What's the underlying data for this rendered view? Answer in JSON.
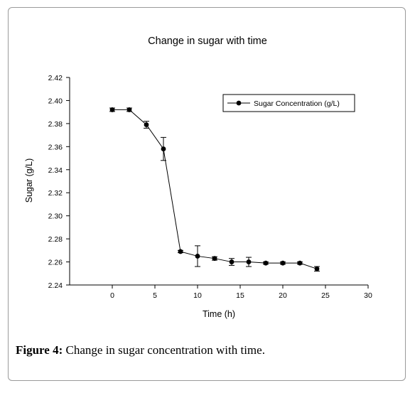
{
  "figure": {
    "caption_label": "Figure 4:",
    "caption_text": " Change in sugar concentration with time."
  },
  "chart_data": {
    "type": "line",
    "title": "Change in sugar with time",
    "xlabel": "Time (h)",
    "ylabel": "Sugar (g/L)",
    "xlim": [
      -5,
      30
    ],
    "ylim": [
      2.24,
      2.42
    ],
    "xticks": [
      0,
      5,
      10,
      15,
      20,
      25,
      30
    ],
    "yticks": [
      2.24,
      2.26,
      2.28,
      2.3,
      2.32,
      2.34,
      2.36,
      2.38,
      2.4,
      2.42
    ],
    "ytick_labels": [
      "2.24",
      "2.26",
      "2.28",
      "2.30",
      "2.32",
      "2.34",
      "2.36",
      "2.38",
      "2.40",
      "2.42"
    ],
    "grid": false,
    "legend_position": "top-right",
    "series": [
      {
        "name": "Sugar Concentration (g/L)",
        "color": "#000000",
        "marker": "circle",
        "x": [
          0,
          2,
          4,
          6,
          8,
          10,
          12,
          14,
          16,
          18,
          20,
          22,
          24
        ],
        "y": [
          2.392,
          2.392,
          2.379,
          2.358,
          2.269,
          2.265,
          2.263,
          2.26,
          2.26,
          2.259,
          2.259,
          2.259,
          2.254
        ],
        "error": [
          0.0015,
          0.0015,
          0.003,
          0.01,
          0.001,
          0.009,
          0.0015,
          0.003,
          0.004,
          0.001,
          0.001,
          0.001,
          0.002
        ]
      }
    ]
  }
}
